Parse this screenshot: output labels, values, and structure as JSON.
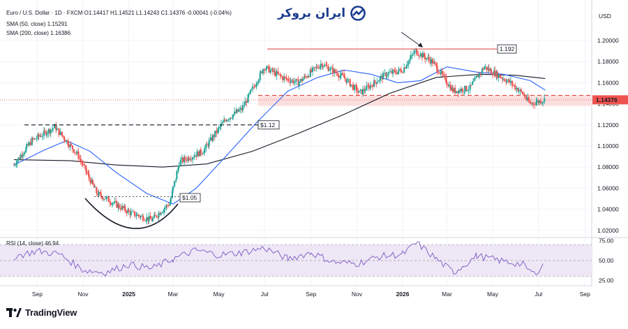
{
  "header": {
    "symbol_line": "Euro / U.S. Dollar · 1D · FXCM",
    "ohlc": "O1.14417 H1.14521 L1.14243 C1.14376 -0.00041 (-0.04%)",
    "sma50_label": "SMA (50, close)",
    "sma50_value": "1.15291",
    "sma200_label": "SMA (200, close)",
    "sma200_value": "1.16386",
    "rsi_label": "RSI (14, close)",
    "rsi_value": "46.94",
    "currency": "USD"
  },
  "watermark": {
    "text": "ایران بروکر"
  },
  "branding": {
    "text": "TradingView"
  },
  "colors": {
    "up": "#26a69a",
    "down": "#ef5350",
    "sma50": "#2962ff",
    "sma200": "#131722",
    "rsi": "#7e57c2",
    "rsi_band": "#ede7f6",
    "zone": "#fbdfdf",
    "resistance": "#e53935",
    "last_price": "#ef5350"
  },
  "chart_data": [
    {
      "type": "candlestick",
      "title": "",
      "ylabel": "USD",
      "ylim": [
        1.015,
        1.215
      ],
      "y_ticks": [
        "1.20000",
        "1.18000",
        "1.16000",
        "1.14000",
        "1.12000",
        "1.10000",
        "1.08000",
        "1.06000",
        "1.04000",
        "1.02000"
      ],
      "x_ticks": [
        "Sep",
        "Nov",
        "2025",
        "Mar",
        "May",
        "Jul",
        "Sep",
        "Nov",
        "2026",
        "Mar",
        "May",
        "Jul",
        "Sep"
      ],
      "grid": true,
      "last_price": "1.14376",
      "key_close_points": {
        "dates": [
          "2024-08-01",
          "2024-08-25",
          "2024-09-25",
          "2024-10-25",
          "2024-11-20",
          "2025-01-05",
          "2025-02-01",
          "2025-02-25",
          "2025-03-10",
          "2025-04-10",
          "2025-05-10",
          "2025-06-01",
          "2025-07-01",
          "2025-07-25",
          "2025-08-15",
          "2025-09-15",
          "2025-10-15",
          "2025-11-05",
          "2025-12-10",
          "2026-01-01",
          "2026-01-18",
          "2026-02-10",
          "2026-03-10",
          "2026-04-01",
          "2026-04-20",
          "2026-05-25",
          "2026-06-10",
          "2026-06-20",
          "2026-07-10"
        ],
        "close": [
          1.082,
          1.105,
          1.118,
          1.092,
          1.055,
          1.036,
          1.03,
          1.046,
          1.085,
          1.095,
          1.125,
          1.135,
          1.175,
          1.165,
          1.16,
          1.178,
          1.165,
          1.15,
          1.168,
          1.172,
          1.19,
          1.18,
          1.152,
          1.155,
          1.175,
          1.16,
          1.15,
          1.14,
          1.144
        ]
      },
      "series": [
        {
          "name": "SMA (50, close)",
          "x": [
            "2024-08-01",
            "2024-09-10",
            "2024-10-10",
            "2024-11-10",
            "2024-12-15",
            "2025-01-25",
            "2025-03-01",
            "2025-04-01",
            "2025-05-10",
            "2025-06-20",
            "2025-08-01",
            "2025-09-10",
            "2025-10-15",
            "2025-11-20",
            "2025-12-25",
            "2026-01-25",
            "2026-03-01",
            "2026-04-10",
            "2026-05-15",
            "2026-06-20",
            "2026-07-10"
          ],
          "y": [
            1.082,
            1.096,
            1.105,
            1.095,
            1.075,
            1.055,
            1.045,
            1.06,
            1.09,
            1.122,
            1.152,
            1.165,
            1.172,
            1.168,
            1.16,
            1.162,
            1.175,
            1.17,
            1.168,
            1.162,
            1.153
          ]
        },
        {
          "name": "SMA (200, close)",
          "x": [
            "2024-08-01",
            "2024-10-15",
            "2024-12-15",
            "2025-02-15",
            "2025-04-15",
            "2025-06-15",
            "2025-08-15",
            "2025-10-15",
            "2025-12-15",
            "2026-02-15",
            "2026-04-15",
            "2026-06-01",
            "2026-07-10"
          ],
          "y": [
            1.087,
            1.086,
            1.082,
            1.08,
            1.083,
            1.095,
            1.112,
            1.13,
            1.15,
            1.165,
            1.168,
            1.167,
            1.164
          ]
        }
      ],
      "annotations": [
        {
          "text": "1.192",
          "y": 1.192
        },
        {
          "text": "$1.12",
          "y": 1.12
        },
        {
          "text": "$1.05",
          "y": 1.05
        }
      ],
      "zone": {
        "from": 1.138,
        "to": 1.148
      }
    },
    {
      "type": "line",
      "title": "",
      "ylim": [
        20,
        80
      ],
      "y_ticks": [
        "75.00",
        "50.00",
        "25.00"
      ],
      "band": [
        30,
        70
      ],
      "series": [
        {
          "name": "RSI (14, close)",
          "x": [
            "2024-08-01",
            "2024-09-01",
            "2024-10-01",
            "2024-11-01",
            "2024-12-01",
            "2025-01-01",
            "2025-02-01",
            "2025-03-01",
            "2025-04-01",
            "2025-05-01",
            "2025-06-01",
            "2025-07-01",
            "2025-08-01",
            "2025-09-01",
            "2025-10-01",
            "2025-11-01",
            "2025-12-01",
            "2026-01-01",
            "2026-01-20",
            "2026-02-15",
            "2026-03-10",
            "2026-04-10",
            "2026-05-10",
            "2026-06-10",
            "2026-06-25",
            "2026-07-10"
          ],
          "y": [
            55,
            62,
            58,
            38,
            35,
            45,
            40,
            52,
            63,
            57,
            60,
            66,
            52,
            60,
            48,
            46,
            55,
            58,
            72,
            52,
            35,
            56,
            50,
            45,
            33,
            47
          ]
        }
      ]
    }
  ]
}
